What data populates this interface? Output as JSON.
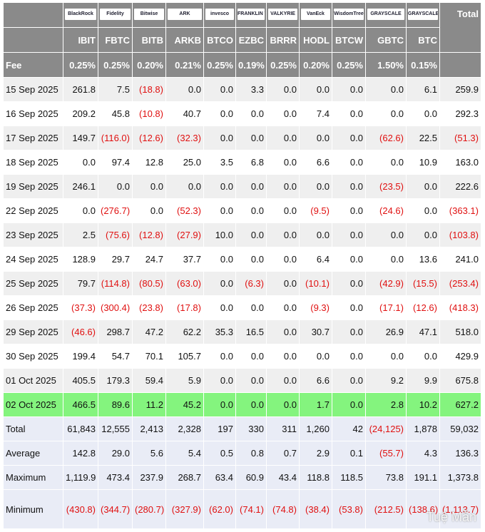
{
  "table": {
    "logos": [
      "BlackRock",
      "Fidelity",
      "Bitwise",
      "ARK",
      "invesco",
      "FRANKLIN TEMPLETON",
      "VALKYRIE",
      "VanEck",
      "WisdomTree",
      "GRAYSCALE",
      "GRAYSCALE"
    ],
    "total_label": "Total",
    "tickers": [
      "IBIT",
      "FBTC",
      "BITB",
      "ARKB",
      "BTCO",
      "EZBC",
      "BRRR",
      "HODL",
      "BTCW",
      "GBTC",
      "BTC"
    ],
    "fee": {
      "label": "Fee",
      "values": [
        "0.25%",
        "0.25%",
        "0.20%",
        "0.21%",
        "0.25%",
        "0.19%",
        "0.25%",
        "0.20%",
        "0.25%",
        "1.50%",
        "0.15%"
      ]
    },
    "rows": [
      {
        "date": "15 Sep 2025",
        "cells": [
          "261.8",
          "7.5",
          "(18.8)",
          "0.0",
          "0.0",
          "3.3",
          "0.0",
          "0.0",
          "0.0",
          "0.0",
          "6.1",
          "259.9"
        ]
      },
      {
        "date": "16 Sep 2025",
        "cells": [
          "209.2",
          "45.8",
          "(10.8)",
          "40.7",
          "0.0",
          "0.0",
          "0.0",
          "7.4",
          "0.0",
          "0.0",
          "0.0",
          "292.3"
        ]
      },
      {
        "date": "17 Sep 2025",
        "cells": [
          "149.7",
          "(116.0)",
          "(12.6)",
          "(32.3)",
          "0.0",
          "0.0",
          "0.0",
          "0.0",
          "0.0",
          "(62.6)",
          "22.5",
          "(51.3)"
        ]
      },
      {
        "date": "18 Sep 2025",
        "cells": [
          "0.0",
          "97.4",
          "12.8",
          "25.0",
          "3.5",
          "6.8",
          "0.0",
          "6.6",
          "0.0",
          "0.0",
          "10.9",
          "163.0"
        ]
      },
      {
        "date": "19 Sep 2025",
        "cells": [
          "246.1",
          "0.0",
          "0.0",
          "0.0",
          "0.0",
          "0.0",
          "0.0",
          "0.0",
          "0.0",
          "(23.5)",
          "0.0",
          "222.6"
        ]
      },
      {
        "date": "22 Sep 2025",
        "cells": [
          "0.0",
          "(276.7)",
          "0.0",
          "(52.3)",
          "0.0",
          "0.0",
          "0.0",
          "(9.5)",
          "0.0",
          "(24.6)",
          "0.0",
          "(363.1)"
        ]
      },
      {
        "date": "23 Sep 2025",
        "cells": [
          "2.5",
          "(75.6)",
          "(12.8)",
          "(27.9)",
          "10.0",
          "0.0",
          "0.0",
          "0.0",
          "0.0",
          "0.0",
          "0.0",
          "(103.8)"
        ]
      },
      {
        "date": "24 Sep 2025",
        "cells": [
          "128.9",
          "29.7",
          "24.7",
          "37.7",
          "0.0",
          "0.0",
          "0.0",
          "6.4",
          "0.0",
          "0.0",
          "13.6",
          "241.0"
        ]
      },
      {
        "date": "25 Sep 2025",
        "cells": [
          "79.7",
          "(114.8)",
          "(80.5)",
          "(63.0)",
          "0.0",
          "(6.3)",
          "0.0",
          "(10.1)",
          "0.0",
          "(42.9)",
          "(15.5)",
          "(253.4)"
        ]
      },
      {
        "date": "26 Sep 2025",
        "cells": [
          "(37.3)",
          "(300.4)",
          "(23.8)",
          "(17.8)",
          "0.0",
          "0.0",
          "0.0",
          "(9.3)",
          "0.0",
          "(17.1)",
          "(12.6)",
          "(418.3)"
        ]
      },
      {
        "date": "29 Sep 2025",
        "cells": [
          "(46.6)",
          "298.7",
          "47.2",
          "62.2",
          "35.3",
          "16.5",
          "0.0",
          "30.7",
          "0.0",
          "26.9",
          "47.1",
          "518.0"
        ]
      },
      {
        "date": "30 Sep 2025",
        "cells": [
          "199.4",
          "54.7",
          "70.1",
          "105.7",
          "0.0",
          "0.0",
          "0.0",
          "0.0",
          "0.0",
          "0.0",
          "0.0",
          "429.9"
        ]
      },
      {
        "date": "01 Oct 2025",
        "cells": [
          "405.5",
          "179.3",
          "59.4",
          "5.9",
          "0.0",
          "0.0",
          "0.0",
          "6.6",
          "0.0",
          "9.2",
          "9.9",
          "675.8"
        ]
      },
      {
        "date": "02 Oct 2025",
        "cells": [
          "466.5",
          "89.6",
          "11.2",
          "45.2",
          "0.0",
          "0.0",
          "0.0",
          "1.7",
          "0.0",
          "2.8",
          "10.2",
          "627.2"
        ],
        "highlight": true
      }
    ],
    "summary": [
      {
        "label": "Total",
        "cells": [
          "61,843",
          "12,555",
          "2,413",
          "2,328",
          "197",
          "330",
          "311",
          "1,260",
          "42",
          "(24,125)",
          "1,878",
          "59,032"
        ]
      },
      {
        "label": "Average",
        "cells": [
          "142.8",
          "29.0",
          "5.6",
          "5.4",
          "0.5",
          "0.8",
          "0.7",
          "2.9",
          "0.1",
          "(55.7)",
          "4.3",
          "136.3"
        ]
      },
      {
        "label": "Maximum",
        "cells": [
          "1,119.9",
          "473.4",
          "237.9",
          "268.7",
          "63.4",
          "60.9",
          "43.4",
          "118.8",
          "118.5",
          "73.8",
          "191.1",
          "1,373.8"
        ]
      },
      {
        "label": "Minimum",
        "cells": [
          "(430.8)",
          "(344.7)",
          "(280.7)",
          "(327.9)",
          "(62.0)",
          "(74.1)",
          "(74.8)",
          "(38.4)",
          "(53.8)",
          "(212.5)",
          "(138.6)",
          "(1,113.7)"
        ]
      }
    ]
  },
  "watermark": "Tuệ Mẫn"
}
